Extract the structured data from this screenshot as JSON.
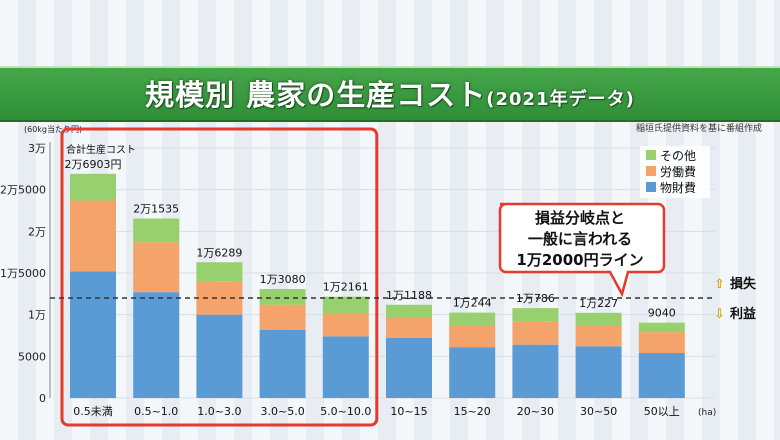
{
  "header": {
    "title": "規模別 農家の生産コスト",
    "subtitle": "(2021年データ)",
    "source": "稲垣氏提供資料を基に番組作成"
  },
  "chart_data": {
    "type": "bar",
    "stacked": true,
    "unit_label": "(60kg当たり円)",
    "x_unit": "(ha)",
    "ylim": [
      0,
      30000
    ],
    "y_ticks": [
      {
        "value": 0,
        "label": "0"
      },
      {
        "value": 5000,
        "label": "5000"
      },
      {
        "value": 10000,
        "label": "1万"
      },
      {
        "value": 15000,
        "label": "1万5000"
      },
      {
        "value": 20000,
        "label": "2万"
      },
      {
        "value": 25000,
        "label": "2万5000"
      },
      {
        "value": 30000,
        "label": "3万"
      }
    ],
    "categories": [
      "0.5未満",
      "0.5~1.0",
      "1.0~3.0",
      "3.0~5.0",
      "5.0~10.0",
      "10~15",
      "15~20",
      "20~30",
      "30~50",
      "50以上"
    ],
    "series": [
      {
        "name": "物財費",
        "color": "#5b9bd5",
        "values": [
          15200,
          12700,
          10000,
          8200,
          7400,
          7200,
          6100,
          6400,
          6200,
          5400
        ]
      },
      {
        "name": "労働費",
        "color": "#f4a46a",
        "values": [
          8500,
          6000,
          4000,
          3000,
          2800,
          2400,
          2600,
          2800,
          2500,
          2500
        ]
      },
      {
        "name": "その他",
        "color": "#98cf6f",
        "values": [
          3203,
          2835,
          2289,
          1880,
          1961,
          1588,
          1544,
          1586,
          1527,
          1140
        ]
      }
    ],
    "totals": [
      26903,
      21535,
      16289,
      13080,
      12161,
      11188,
      10244,
      10786,
      10227,
      9040
    ],
    "total_labels": [
      "2万6903円",
      "2万1535",
      "1万6289",
      "1万3080",
      "1万2161",
      "1万1188",
      "1万244",
      "1万786",
      "1万227",
      "9040"
    ],
    "first_total_caption": "合計生産コスト",
    "legend": [
      "その他",
      "労働費",
      "物財費"
    ],
    "legend_position": "top-right",
    "breakeven": {
      "value": 12000,
      "callout": [
        "損益分岐点と",
        "一般に言われる",
        "1万2000円ライン"
      ],
      "above_label": "損失",
      "below_label": "利益",
      "up_arrow": "⇧",
      "down_arrow": "⇩"
    },
    "highlight_categories": [
      "0.5未満",
      "0.5~1.0",
      "1.0~3.0",
      "3.0~5.0",
      "5.0~10.0"
    ]
  }
}
